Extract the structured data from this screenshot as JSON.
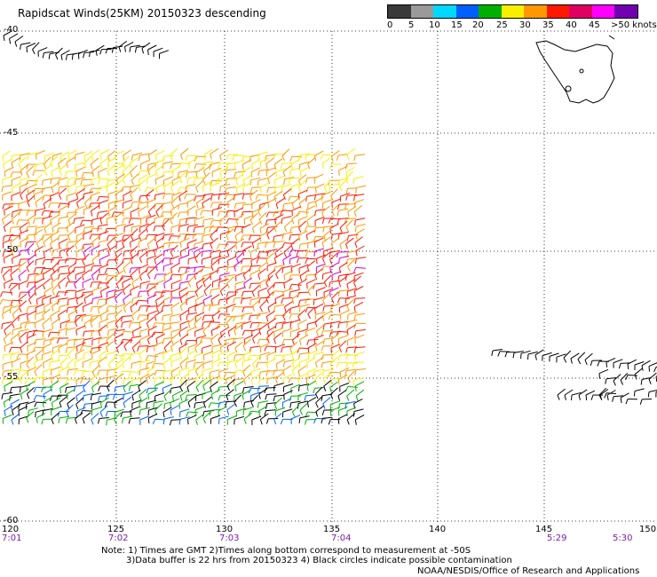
{
  "title": "Rapidscat Winds(25KM) 20150323 descending",
  "legend": {
    "labels": [
      "0",
      "5",
      "10",
      "15",
      "20",
      "25",
      "30",
      "35",
      "40",
      "45",
      ">50 knots"
    ],
    "colors": [
      "#3a3a3a",
      "#9a9a9a",
      "#00d8ff",
      "#0060ff",
      "#00b000",
      "#f8f000",
      "#ff9800",
      "#ff1800",
      "#e00060",
      "#ff00ff",
      "#7000b0"
    ]
  },
  "axes": {
    "lat_labels": [
      "-40",
      "-45",
      "-50",
      "-55",
      "-60"
    ],
    "lon_labels": [
      "120",
      "125",
      "130",
      "135",
      "140",
      "145",
      "150"
    ],
    "time_labels": [
      "7:01",
      "7:02",
      "7:03",
      "7:04",
      "5:29",
      "5:30"
    ]
  },
  "notes": [
    "Note: 1) Times are GMT 2)Times along bottom correspond to measurement at -50S",
    "3)Data buffer is 22 hrs from 20150323 4) Black circles indicate possible contamination"
  ],
  "credit": "NOAA/NESDIS/Office of Research and Applications"
}
